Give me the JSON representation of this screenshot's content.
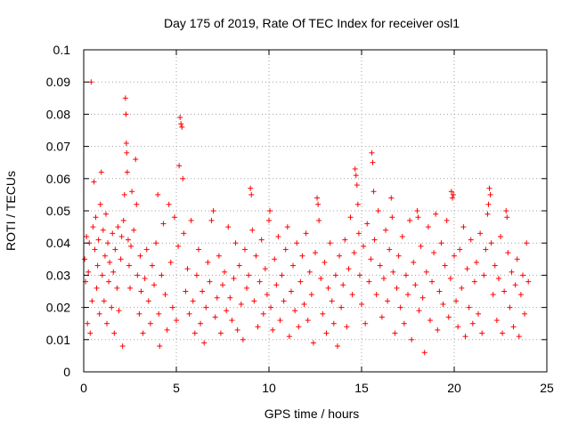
{
  "chart_data": {
    "type": "scatter",
    "title": "Day 175 of 2019, Rate Of TEC Index for receiver osl1",
    "xlabel": "GPS time / hours",
    "ylabel": "ROTI / TECUs",
    "xlim": [
      0,
      25
    ],
    "ylim": [
      0,
      0.1
    ],
    "xticks": [
      0,
      5,
      10,
      15,
      20,
      25
    ],
    "xtick_labels": [
      "0",
      "5",
      "10",
      "15",
      "20",
      "25"
    ],
    "yticks": [
      0,
      0.01,
      0.02,
      0.03,
      0.04,
      0.05,
      0.06,
      0.07,
      0.08,
      0.09,
      0.1
    ],
    "ytick_labels": [
      "0",
      "0.01",
      "0.02",
      "0.03",
      "0.04",
      "0.05",
      "0.06",
      "0.07",
      "0.08",
      "0.09",
      "0.1"
    ],
    "grid": true,
    "marker": "plus",
    "color": "#ff0000",
    "points": [
      [
        0.0,
        0.02
      ],
      [
        0.05,
        0.035
      ],
      [
        0.1,
        0.028
      ],
      [
        0.15,
        0.042
      ],
      [
        0.2,
        0.015
      ],
      [
        0.25,
        0.031
      ],
      [
        0.3,
        0.04
      ],
      [
        0.35,
        0.012
      ],
      [
        0.4,
        0.09
      ],
      [
        0.45,
        0.022
      ],
      [
        0.5,
        0.045
      ],
      [
        0.55,
        0.059
      ],
      [
        0.6,
        0.038
      ],
      [
        0.65,
        0.048
      ],
      [
        0.7,
        0.026
      ],
      [
        0.75,
        0.033
      ],
      [
        0.8,
        0.041
      ],
      [
        0.85,
        0.018
      ],
      [
        0.9,
        0.052
      ],
      [
        0.95,
        0.062
      ],
      [
        1.0,
        0.03
      ],
      [
        1.05,
        0.044
      ],
      [
        1.1,
        0.022
      ],
      [
        1.15,
        0.036
      ],
      [
        1.2,
        0.049
      ],
      [
        1.25,
        0.015
      ],
      [
        1.3,
        0.04
      ],
      [
        1.35,
        0.028
      ],
      [
        1.4,
        0.034
      ],
      [
        1.5,
        0.02
      ],
      [
        1.55,
        0.043
      ],
      [
        1.6,
        0.031
      ],
      [
        1.65,
        0.012
      ],
      [
        1.7,
        0.038
      ],
      [
        1.8,
        0.026
      ],
      [
        1.85,
        0.045
      ],
      [
        1.9,
        0.019
      ],
      [
        2.0,
        0.035
      ],
      [
        2.05,
        0.042
      ],
      [
        2.1,
        0.008
      ],
      [
        2.15,
        0.047
      ],
      [
        2.2,
        0.055
      ],
      [
        2.25,
        0.085
      ],
      [
        2.28,
        0.08
      ],
      [
        2.3,
        0.071
      ],
      [
        2.32,
        0.068
      ],
      [
        2.35,
        0.062
      ],
      [
        2.4,
        0.041
      ],
      [
        2.45,
        0.033
      ],
      [
        2.5,
        0.026
      ],
      [
        2.55,
        0.039
      ],
      [
        2.6,
        0.056
      ],
      [
        2.7,
        0.044
      ],
      [
        2.8,
        0.066
      ],
      [
        2.85,
        0.052
      ],
      [
        2.9,
        0.03
      ],
      [
        3.0,
        0.018
      ],
      [
        3.05,
        0.036
      ],
      [
        3.1,
        0.025
      ],
      [
        3.2,
        0.012
      ],
      [
        3.3,
        0.029
      ],
      [
        3.4,
        0.038
      ],
      [
        3.5,
        0.022
      ],
      [
        3.6,
        0.015
      ],
      [
        3.7,
        0.033
      ],
      [
        3.8,
        0.027
      ],
      [
        3.9,
        0.04
      ],
      [
        4.0,
        0.055
      ],
      [
        4.05,
        0.018
      ],
      [
        4.1,
        0.008
      ],
      [
        4.2,
        0.03
      ],
      [
        4.3,
        0.046
      ],
      [
        4.4,
        0.024
      ],
      [
        4.5,
        0.013
      ],
      [
        4.6,
        0.052
      ],
      [
        4.7,
        0.034
      ],
      [
        4.8,
        0.02
      ],
      [
        4.9,
        0.048
      ],
      [
        5.0,
        0.016
      ],
      [
        5.1,
        0.039
      ],
      [
        5.15,
        0.064
      ],
      [
        5.2,
        0.079
      ],
      [
        5.25,
        0.077
      ],
      [
        5.3,
        0.076
      ],
      [
        5.35,
        0.06
      ],
      [
        5.4,
        0.043
      ],
      [
        5.5,
        0.025
      ],
      [
        5.6,
        0.032
      ],
      [
        5.7,
        0.018
      ],
      [
        5.8,
        0.047
      ],
      [
        5.9,
        0.022
      ],
      [
        6.0,
        0.012
      ],
      [
        6.1,
        0.03
      ],
      [
        6.2,
        0.038
      ],
      [
        6.3,
        0.015
      ],
      [
        6.4,
        0.025
      ],
      [
        6.5,
        0.009
      ],
      [
        6.6,
        0.02
      ],
      [
        6.7,
        0.034
      ],
      [
        6.8,
        0.028
      ],
      [
        6.9,
        0.047
      ],
      [
        7.0,
        0.05
      ],
      [
        7.1,
        0.017
      ],
      [
        7.2,
        0.023
      ],
      [
        7.3,
        0.036
      ],
      [
        7.4,
        0.012
      ],
      [
        7.5,
        0.027
      ],
      [
        7.6,
        0.031
      ],
      [
        7.7,
        0.019
      ],
      [
        7.8,
        0.045
      ],
      [
        7.9,
        0.023
      ],
      [
        8.0,
        0.016
      ],
      [
        8.1,
        0.029
      ],
      [
        8.2,
        0.04
      ],
      [
        8.3,
        0.013
      ],
      [
        8.4,
        0.033
      ],
      [
        8.5,
        0.021
      ],
      [
        8.6,
        0.01
      ],
      [
        8.7,
        0.038
      ],
      [
        8.8,
        0.026
      ],
      [
        8.9,
        0.03
      ],
      [
        9.0,
        0.057
      ],
      [
        9.05,
        0.055
      ],
      [
        9.1,
        0.044
      ],
      [
        9.2,
        0.022
      ],
      [
        9.3,
        0.036
      ],
      [
        9.4,
        0.014
      ],
      [
        9.5,
        0.028
      ],
      [
        9.6,
        0.041
      ],
      [
        9.7,
        0.018
      ],
      [
        9.8,
        0.032
      ],
      [
        9.9,
        0.024
      ],
      [
        10.0,
        0.047
      ],
      [
        10.05,
        0.05
      ],
      [
        10.1,
        0.02
      ],
      [
        10.2,
        0.013
      ],
      [
        10.3,
        0.035
      ],
      [
        10.4,
        0.027
      ],
      [
        10.5,
        0.042
      ],
      [
        10.6,
        0.016
      ],
      [
        10.7,
        0.03
      ],
      [
        10.8,
        0.022
      ],
      [
        10.9,
        0.038
      ],
      [
        11.0,
        0.045
      ],
      [
        11.1,
        0.011
      ],
      [
        11.2,
        0.025
      ],
      [
        11.3,
        0.033
      ],
      [
        11.4,
        0.019
      ],
      [
        11.5,
        0.04
      ],
      [
        11.6,
        0.014
      ],
      [
        11.7,
        0.028
      ],
      [
        11.8,
        0.036
      ],
      [
        11.9,
        0.021
      ],
      [
        12.0,
        0.043
      ],
      [
        12.1,
        0.016
      ],
      [
        12.2,
        0.031
      ],
      [
        12.3,
        0.024
      ],
      [
        12.4,
        0.009
      ],
      [
        12.5,
        0.037
      ],
      [
        12.6,
        0.054
      ],
      [
        12.65,
        0.052
      ],
      [
        12.7,
        0.047
      ],
      [
        12.8,
        0.029
      ],
      [
        12.9,
        0.018
      ],
      [
        13.0,
        0.034
      ],
      [
        13.1,
        0.012
      ],
      [
        13.2,
        0.026
      ],
      [
        13.3,
        0.04
      ],
      [
        13.4,
        0.022
      ],
      [
        13.5,
        0.015
      ],
      [
        13.6,
        0.03
      ],
      [
        13.7,
        0.008
      ],
      [
        13.8,
        0.036
      ],
      [
        13.9,
        0.02
      ],
      [
        14.0,
        0.027
      ],
      [
        14.1,
        0.041
      ],
      [
        14.2,
        0.014
      ],
      [
        14.3,
        0.032
      ],
      [
        14.4,
        0.048
      ],
      [
        14.5,
        0.024
      ],
      [
        14.6,
        0.037
      ],
      [
        14.65,
        0.063
      ],
      [
        14.7,
        0.061
      ],
      [
        14.75,
        0.058
      ],
      [
        14.8,
        0.052
      ],
      [
        14.85,
        0.043
      ],
      [
        14.9,
        0.03
      ],
      [
        15.0,
        0.021
      ],
      [
        15.1,
        0.039
      ],
      [
        15.2,
        0.015
      ],
      [
        15.3,
        0.046
      ],
      [
        15.4,
        0.028
      ],
      [
        15.5,
        0.035
      ],
      [
        15.55,
        0.068
      ],
      [
        15.6,
        0.065
      ],
      [
        15.65,
        0.056
      ],
      [
        15.7,
        0.041
      ],
      [
        15.8,
        0.024
      ],
      [
        15.9,
        0.05
      ],
      [
        16.0,
        0.033
      ],
      [
        16.1,
        0.017
      ],
      [
        16.2,
        0.029
      ],
      [
        16.3,
        0.044
      ],
      [
        16.4,
        0.022
      ],
      [
        16.5,
        0.038
      ],
      [
        16.6,
        0.054
      ],
      [
        16.65,
        0.048
      ],
      [
        16.7,
        0.031
      ],
      [
        16.8,
        0.012
      ],
      [
        16.9,
        0.026
      ],
      [
        17.0,
        0.036
      ],
      [
        17.1,
        0.02
      ],
      [
        17.2,
        0.042
      ],
      [
        17.3,
        0.015
      ],
      [
        17.4,
        0.03
      ],
      [
        17.5,
        0.024
      ],
      [
        17.6,
        0.047
      ],
      [
        17.7,
        0.01
      ],
      [
        17.8,
        0.034
      ],
      [
        17.9,
        0.027
      ],
      [
        18.0,
        0.05
      ],
      [
        18.05,
        0.048
      ],
      [
        18.1,
        0.019
      ],
      [
        18.2,
        0.039
      ],
      [
        18.3,
        0.023
      ],
      [
        18.4,
        0.006
      ],
      [
        18.5,
        0.031
      ],
      [
        18.6,
        0.045
      ],
      [
        18.7,
        0.016
      ],
      [
        18.8,
        0.028
      ],
      [
        18.9,
        0.037
      ],
      [
        19.0,
        0.049
      ],
      [
        19.1,
        0.013
      ],
      [
        19.2,
        0.025
      ],
      [
        19.3,
        0.04
      ],
      [
        19.4,
        0.021
      ],
      [
        19.5,
        0.033
      ],
      [
        19.6,
        0.047
      ],
      [
        19.7,
        0.017
      ],
      [
        19.8,
        0.029
      ],
      [
        19.85,
        0.056
      ],
      [
        19.9,
        0.054
      ],
      [
        19.95,
        0.055
      ],
      [
        20.0,
        0.036
      ],
      [
        20.1,
        0.022
      ],
      [
        20.2,
        0.014
      ],
      [
        20.3,
        0.038
      ],
      [
        20.4,
        0.026
      ],
      [
        20.5,
        0.045
      ],
      [
        20.6,
        0.011
      ],
      [
        20.7,
        0.032
      ],
      [
        20.8,
        0.02
      ],
      [
        20.9,
        0.041
      ],
      [
        21.0,
        0.015
      ],
      [
        21.1,
        0.028
      ],
      [
        21.2,
        0.034
      ],
      [
        21.3,
        0.018
      ],
      [
        21.4,
        0.043
      ],
      [
        21.5,
        0.012
      ],
      [
        21.6,
        0.03
      ],
      [
        21.7,
        0.038
      ],
      [
        21.8,
        0.049
      ],
      [
        21.85,
        0.052
      ],
      [
        21.9,
        0.057
      ],
      [
        21.95,
        0.055
      ],
      [
        22.0,
        0.04
      ],
      [
        22.1,
        0.024
      ],
      [
        22.2,
        0.033
      ],
      [
        22.3,
        0.016
      ],
      [
        22.4,
        0.029
      ],
      [
        22.5,
        0.042
      ],
      [
        22.6,
        0.012
      ],
      [
        22.7,
        0.025
      ],
      [
        22.8,
        0.05
      ],
      [
        22.85,
        0.048
      ],
      [
        22.9,
        0.037
      ],
      [
        23.0,
        0.02
      ],
      [
        23.1,
        0.031
      ],
      [
        23.2,
        0.014
      ],
      [
        23.3,
        0.027
      ],
      [
        23.4,
        0.035
      ],
      [
        23.5,
        0.011
      ],
      [
        23.6,
        0.024
      ],
      [
        23.7,
        0.03
      ],
      [
        23.8,
        0.018
      ],
      [
        23.9,
        0.04
      ],
      [
        24.0,
        0.028
      ]
    ]
  }
}
